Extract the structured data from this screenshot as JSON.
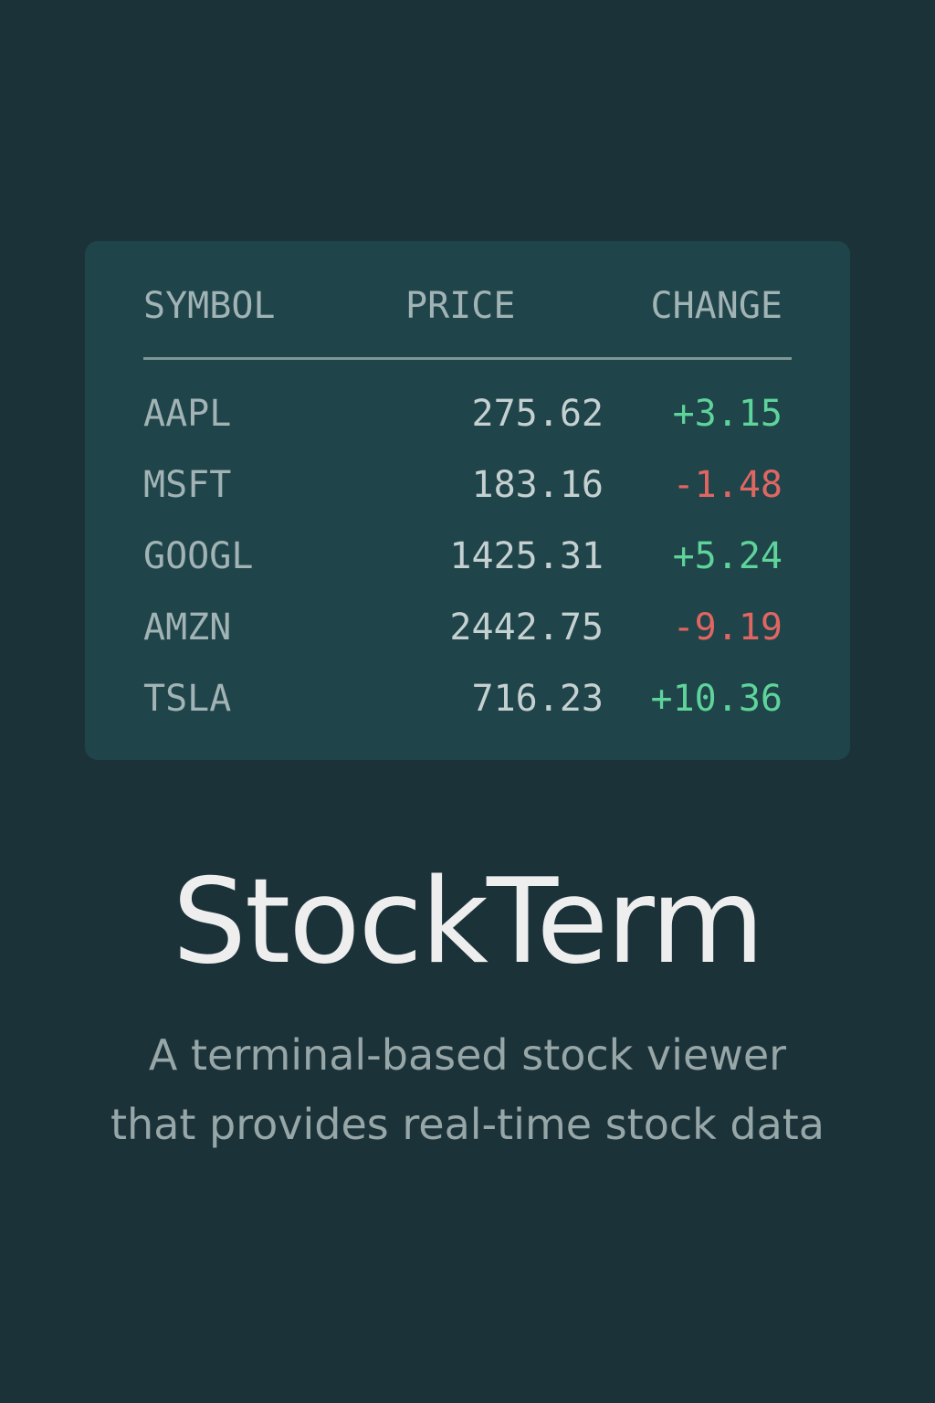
{
  "table": {
    "headers": {
      "symbol": "SYMBOL",
      "price": "PRICE",
      "change": "CHANGE"
    },
    "rows": [
      {
        "symbol": "AAPL",
        "price": "275.62",
        "change": "+3.15",
        "direction": "up"
      },
      {
        "symbol": "MSFT",
        "price": "183.16",
        "change": "-1.48",
        "direction": "down"
      },
      {
        "symbol": "GOOGL",
        "price": "1425.31",
        "change": "+5.24",
        "direction": "up"
      },
      {
        "symbol": "AMZN",
        "price": "2442.75",
        "change": "-9.19",
        "direction": "down"
      },
      {
        "symbol": "TSLA",
        "price": "716.23",
        "change": "+10.36",
        "direction": "up"
      }
    ]
  },
  "app": {
    "title": "StockTerm",
    "subtitle_lines": [
      "A terminal-based stock viewer",
      "that provides real-time stock data"
    ]
  },
  "colors": {
    "background": "#1c3239",
    "panel": "#1f444a",
    "up": "#5ed39a",
    "down": "#e06662",
    "title": "#eeeeee",
    "subtitle": "#97a7a8"
  }
}
